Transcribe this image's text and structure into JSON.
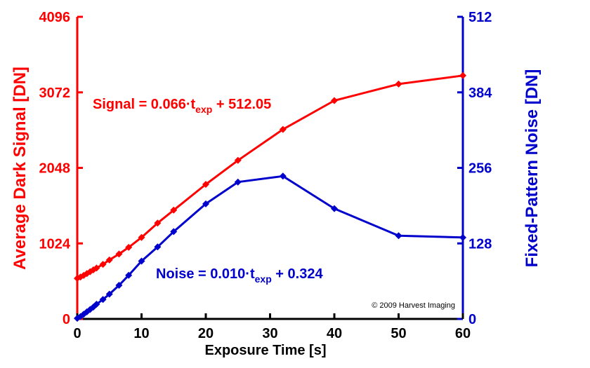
{
  "chart_data": {
    "type": "line",
    "xlabel": "Exposure Time [s]",
    "xlim": [
      0,
      60
    ],
    "x_ticks": [
      0,
      10,
      20,
      30,
      40,
      50,
      60
    ],
    "ylabel_left": "Average Dark Signal [DN]",
    "ylim_left": [
      0,
      4096
    ],
    "y_ticks_left": [
      0,
      1024,
      2048,
      3072,
      4096
    ],
    "ylabel_right": "Fixed-Pattern Noise [DN]",
    "ylim_right": [
      0,
      512
    ],
    "y_ticks_right": [
      0,
      128,
      256,
      384,
      512
    ],
    "grid": false,
    "colors": {
      "signal": "#ff0000",
      "noise": "#0000cc"
    },
    "series": [
      {
        "name": "Average Dark Signal",
        "axis": "left",
        "x": [
          0,
          0.5,
          1,
          1.5,
          2,
          2.5,
          3,
          4,
          5,
          6.5,
          8,
          10,
          12.5,
          15,
          20,
          25,
          32,
          40,
          50,
          60
        ],
        "values": [
          550,
          568,
          590,
          615,
          640,
          665,
          690,
          740,
          800,
          880,
          970,
          1105,
          1300,
          1475,
          1825,
          2150,
          2570,
          2960,
          3185,
          3300
        ]
      },
      {
        "name": "Fixed-Pattern Noise",
        "axis": "right",
        "x": [
          0,
          0.5,
          1,
          1.5,
          2,
          2.5,
          3,
          4,
          5,
          6.5,
          8,
          10,
          12.5,
          15,
          20,
          25,
          32,
          40,
          50,
          60
        ],
        "values": [
          1,
          4,
          8,
          12,
          16,
          20,
          25,
          33,
          42,
          57,
          74,
          98,
          122,
          148,
          195,
          232,
          242,
          187,
          141,
          138
        ]
      }
    ],
    "annotations": {
      "signal": {
        "prefix": "Signal = 0.066·t",
        "sub": "exp",
        "suffix": " + 512.05"
      },
      "noise": {
        "prefix": "Noise = 0.010·t",
        "sub": "exp",
        "suffix": " + 0.324"
      },
      "copyright": "© 2009 Harvest Imaging"
    }
  }
}
